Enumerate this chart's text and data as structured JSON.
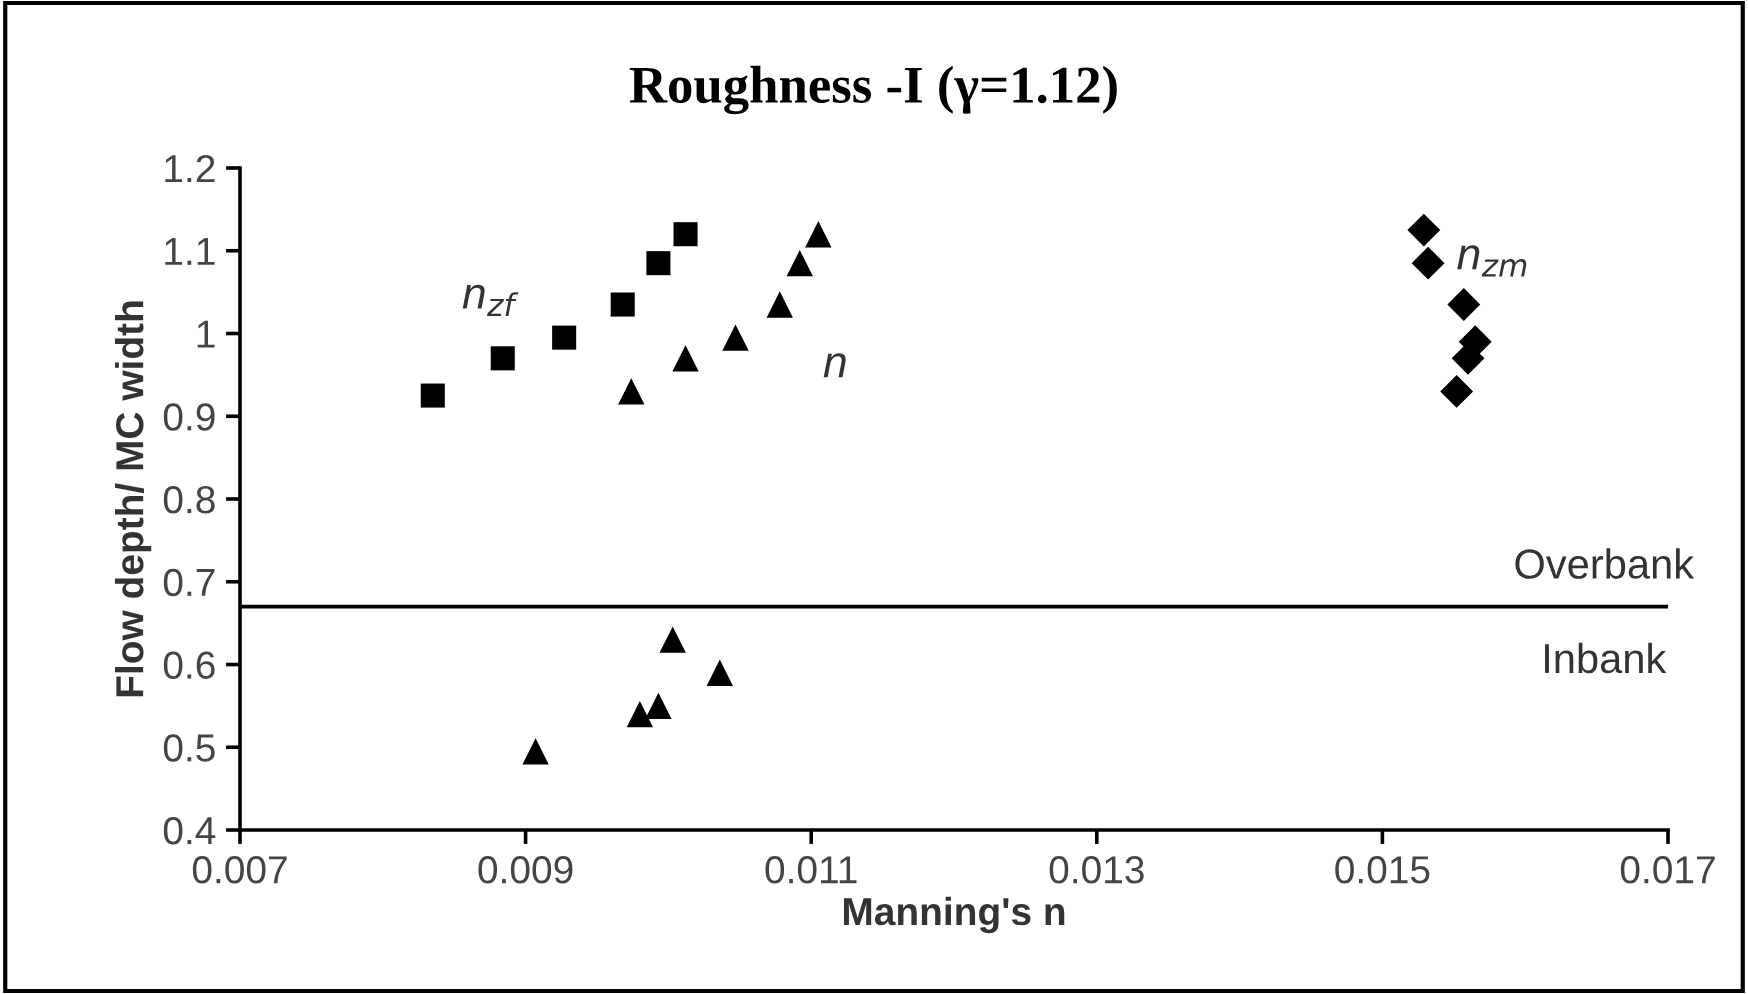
{
  "chart_data": {
    "type": "scatter",
    "title": "Roughness -I (γ=1.12)",
    "xlabel": "Manning's n",
    "ylabel": "Flow depth/ MC width",
    "xlim": [
      0.007,
      0.017
    ],
    "xticks": [
      0.007,
      0.009,
      0.011,
      0.013,
      0.015,
      0.017
    ],
    "ylim": [
      0.4,
      1.2
    ],
    "yticks": [
      0.4,
      0.5,
      0.6,
      0.7,
      0.8,
      0.9,
      1,
      1.1,
      1.2
    ],
    "grid": false,
    "series": [
      {
        "name": "n$_{zf}$",
        "color": "#000000",
        "marker": "square",
        "x": [
          0.00835,
          0.00884,
          0.00927,
          0.00968,
          0.00993,
          0.01012
        ],
        "values": [
          0.925,
          0.97,
          0.995,
          1.035,
          1.085,
          1.12
        ]
      },
      {
        "name": "n",
        "color": "#000000",
        "marker": "triangle",
        "x": [
          0.00974,
          0.01012,
          0.01047,
          0.01078,
          0.01092,
          0.01105,
          0.00907,
          0.0098,
          0.00993,
          0.01003,
          0.01036
        ],
        "values": [
          0.93,
          0.97,
          0.995,
          1.035,
          1.085,
          1.12,
          0.495,
          0.54,
          0.55,
          0.63,
          0.59
        ]
      },
      {
        "name": "n$_{zm}$",
        "color": "#000000",
        "marker": "diamond",
        "x": [
          0.01529,
          0.01532,
          0.01557,
          0.01565,
          0.0156,
          0.01552
        ],
        "values": [
          1.125,
          1.085,
          1.035,
          0.99,
          0.97,
          0.93
        ]
      }
    ],
    "ref_lines": [
      {
        "axis": "y",
        "value": 0.67,
        "color": "#000000",
        "line_style": "solid"
      }
    ],
    "annotations": [
      "Overbank",
      "Inbank"
    ]
  }
}
